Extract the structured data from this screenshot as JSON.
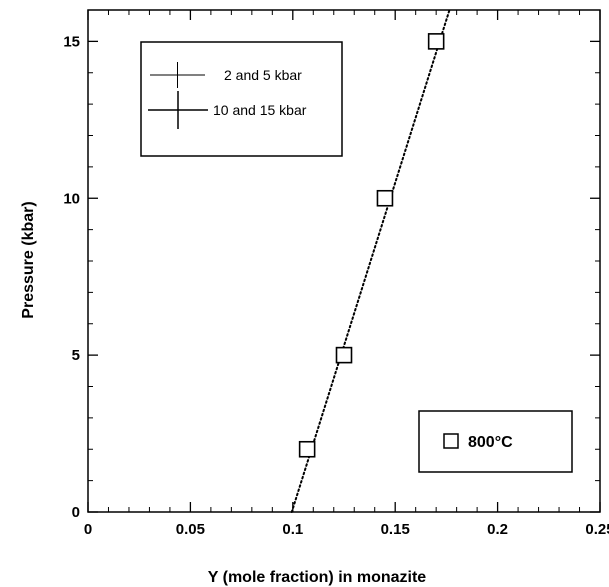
{
  "chart_data": {
    "type": "scatter",
    "xlabel": "Y (mole fraction) in monazite",
    "ylabel": "Pressure (kbar)",
    "xlim": [
      0,
      0.25
    ],
    "ylim": [
      0,
      16
    ],
    "xticks": [
      0,
      0.05,
      0.1,
      0.15,
      0.2,
      0.25
    ],
    "xtick_labels": [
      "0",
      "0.05",
      "0.1",
      "0.15",
      "0.2",
      "0.25"
    ],
    "yticks": [
      0,
      5,
      10,
      15
    ],
    "ytick_labels": [
      "0",
      "5",
      "10",
      "15"
    ],
    "grid": false,
    "series": [
      {
        "name": "800°C",
        "marker": "open-square",
        "x": [
          0.107,
          0.125,
          0.145,
          0.17
        ],
        "y": [
          2,
          5,
          10,
          15
        ]
      }
    ],
    "fit_line": {
      "style": "dotted",
      "x": [
        0.0995,
        0.1765
      ],
      "y": [
        0,
        16
      ]
    },
    "legends": [
      {
        "placement": "top-left",
        "entries": [
          {
            "symbol": "cross-small",
            "label": "2 and 5 kbar"
          },
          {
            "symbol": "cross-large",
            "label": "10 and 15 kbar"
          }
        ]
      },
      {
        "placement": "bottom-right",
        "entries": [
          {
            "symbol": "open-square",
            "label": "800°C"
          }
        ]
      }
    ]
  }
}
